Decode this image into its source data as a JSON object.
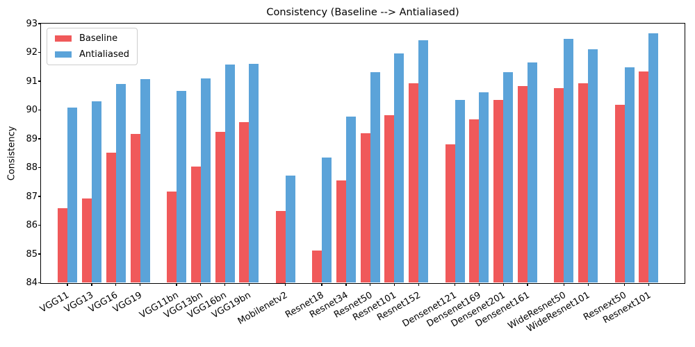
{
  "chart_data": {
    "type": "bar",
    "title": "Consistency (Baseline --> Antialiased)",
    "xlabel": "",
    "ylabel": "Consistency",
    "ylim": [
      84,
      93
    ],
    "yticks": [
      84,
      85,
      86,
      87,
      88,
      89,
      90,
      91,
      92,
      93
    ],
    "grid": false,
    "legend_position": "upper left",
    "x_tick_rotation_deg": 30,
    "categories": [
      "VGG11",
      "VGG13",
      "VGG16",
      "VGG19",
      "VGG11bn",
      "VGG13bn",
      "VGG16bn",
      "VGG19bn",
      "Mobilenetv2",
      "Resnet18",
      "Resnet34",
      "Resnet50",
      "Resnet101",
      "Resnet152",
      "Densenet121",
      "Densenet169",
      "Densenet201",
      "Densenet161",
      "WideResnet50",
      "WideResnet101",
      "Resnext50",
      "Resnext101"
    ],
    "family_sizes": [
      4,
      4,
      1,
      5,
      4,
      2,
      2
    ],
    "series": [
      {
        "name": "Baseline",
        "color": "#f0595a",
        "values": [
          86.58,
          86.92,
          88.52,
          89.17,
          87.16,
          88.03,
          89.24,
          89.59,
          86.5,
          85.11,
          87.56,
          89.2,
          89.81,
          90.92,
          88.81,
          89.68,
          90.36,
          90.82,
          90.77,
          90.93,
          90.17,
          91.33
        ]
      },
      {
        "name": "Antialiased",
        "color": "#5ba3d9",
        "values": [
          90.09,
          90.31,
          90.91,
          91.08,
          90.67,
          91.09,
          91.58,
          91.6,
          87.73,
          88.36,
          89.77,
          91.32,
          91.97,
          92.42,
          90.35,
          90.61,
          91.32,
          91.66,
          92.46,
          92.1,
          91.48,
          92.67
        ]
      }
    ]
  }
}
